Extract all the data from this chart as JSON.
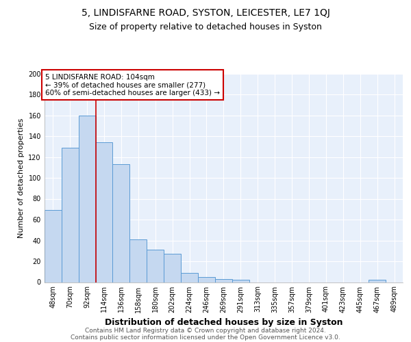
{
  "title": "5, LINDISFARNE ROAD, SYSTON, LEICESTER, LE7 1QJ",
  "subtitle": "Size of property relative to detached houses in Syston",
  "xlabel": "Distribution of detached houses by size in Syston",
  "ylabel": "Number of detached properties",
  "categories": [
    "48sqm",
    "70sqm",
    "92sqm",
    "114sqm",
    "136sqm",
    "158sqm",
    "180sqm",
    "202sqm",
    "224sqm",
    "246sqm",
    "269sqm",
    "291sqm",
    "313sqm",
    "335sqm",
    "357sqm",
    "379sqm",
    "401sqm",
    "423sqm",
    "445sqm",
    "467sqm",
    "489sqm"
  ],
  "values": [
    69,
    129,
    160,
    134,
    113,
    41,
    31,
    27,
    9,
    5,
    3,
    2,
    0,
    0,
    0,
    0,
    0,
    0,
    0,
    2,
    0
  ],
  "bar_color": "#c5d8f0",
  "bar_edge_color": "#5b9bd5",
  "vline_color": "#cc0000",
  "vline_x": 2.5,
  "annotation_text": "5 LINDISFARNE ROAD: 104sqm\n← 39% of detached houses are smaller (277)\n60% of semi-detached houses are larger (433) →",
  "annotation_box_color": "white",
  "annotation_box_edge_color": "#cc0000",
  "ylim": [
    0,
    200
  ],
  "yticks": [
    0,
    20,
    40,
    60,
    80,
    100,
    120,
    140,
    160,
    180,
    200
  ],
  "footer_line1": "Contains HM Land Registry data © Crown copyright and database right 2024.",
  "footer_line2": "Contains public sector information licensed under the Open Government Licence v3.0.",
  "bg_color": "#e8f0fb",
  "grid_color": "#ffffff",
  "title_fontsize": 10,
  "subtitle_fontsize": 9,
  "xlabel_fontsize": 9,
  "ylabel_fontsize": 8,
  "tick_fontsize": 7,
  "footer_fontsize": 6.5,
  "annot_fontsize": 7.5
}
